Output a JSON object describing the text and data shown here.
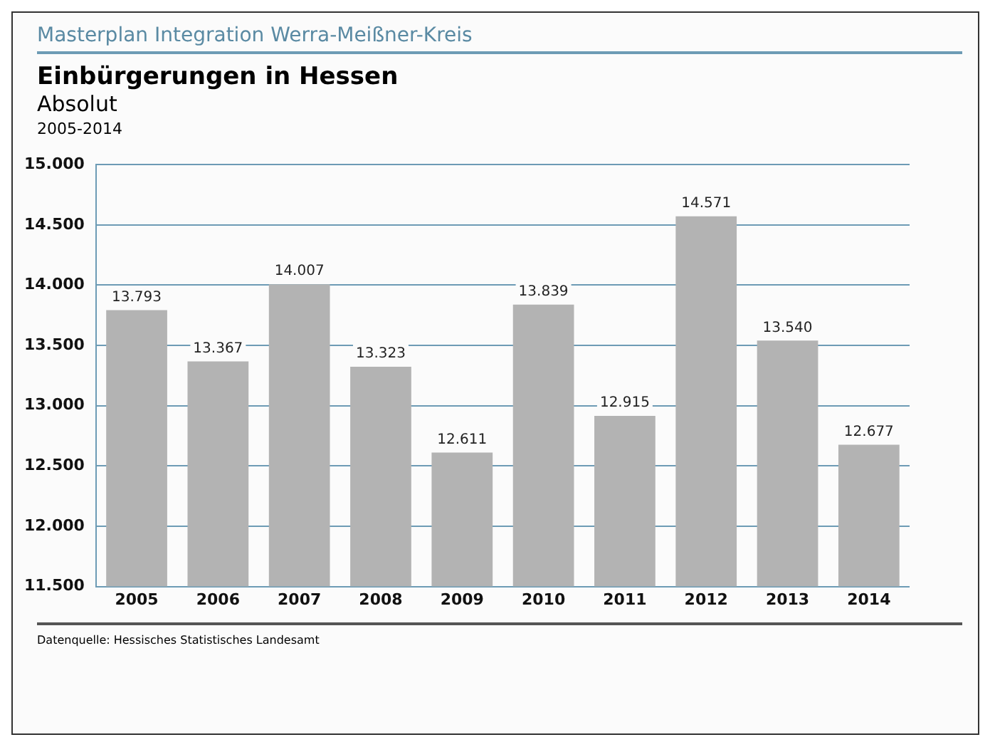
{
  "chart_data": {
    "type": "bar",
    "title": "Einbürgerungen in Hessen",
    "subtitle": "Absolut",
    "annotations": [
      "Masterplan Integration Werra-Meißner-Kreis",
      "2005-2014",
      "Datenquelle: Hessisches Statistisches Landesamt"
    ],
    "categories": [
      "2005",
      "2006",
      "2007",
      "2008",
      "2009",
      "2010",
      "2011",
      "2012",
      "2013",
      "2014"
    ],
    "values": [
      13793,
      13367,
      14007,
      13323,
      12611,
      13839,
      12915,
      14571,
      13540,
      12677
    ],
    "value_labels": [
      "13.793",
      "13.367",
      "14.007",
      "13.323",
      "12.611",
      "13.839",
      "12.915",
      "14.571",
      "13.540",
      "12.677"
    ],
    "color": "#b3b3b3",
    "ylim": [
      11500,
      15000
    ],
    "yticks": [
      {
        "value": 11500,
        "label": "11.500"
      },
      {
        "value": 12000,
        "label": "12.000"
      },
      {
        "value": 12500,
        "label": "12.500"
      },
      {
        "value": 13000,
        "label": "13.000"
      },
      {
        "value": 13500,
        "label": "13.500"
      },
      {
        "value": 14000,
        "label": "14.000"
      },
      {
        "value": 14500,
        "label": "14.500"
      },
      {
        "value": 15000,
        "label": "15.000"
      }
    ],
    "grid": "y",
    "legend": false
  }
}
